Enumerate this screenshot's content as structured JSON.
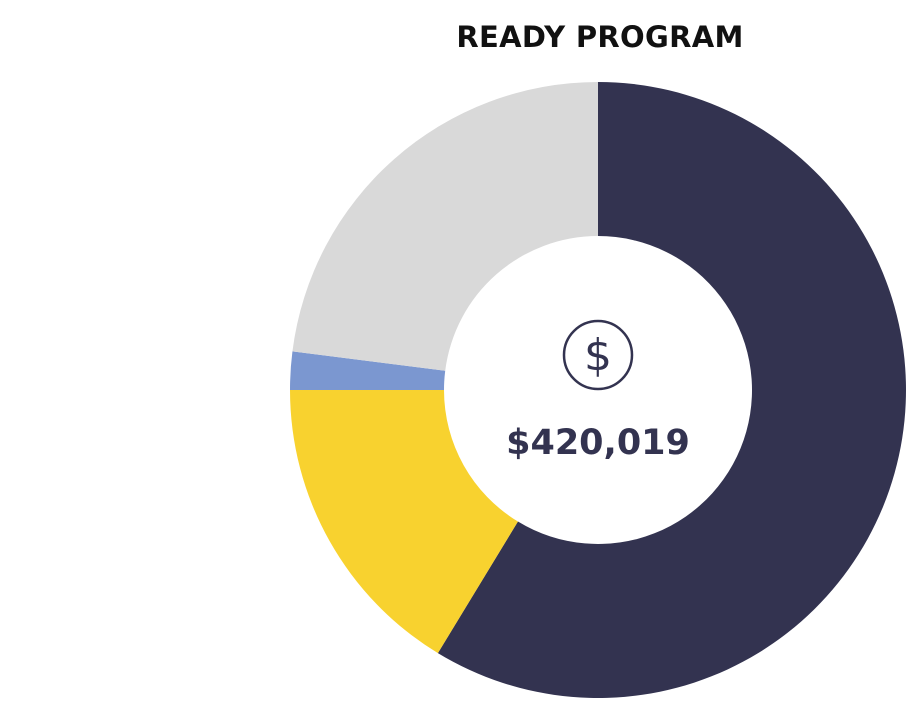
{
  "chart_data": {
    "type": "pie",
    "title": "READY PROGRAM",
    "center_label": "$420,019",
    "center_icon": "dollar-circle-icon",
    "slices": [
      {
        "value": 58.7,
        "color": "#333350"
      },
      {
        "value": 16.3,
        "color": "#F8D22F"
      },
      {
        "value": 2.0,
        "color": "#7B97D0"
      },
      {
        "value": 23.0,
        "color": "#D9D9D9"
      }
    ]
  },
  "colors": {
    "title": "#111111",
    "center_text": "#333350",
    "icon": "#333350"
  }
}
